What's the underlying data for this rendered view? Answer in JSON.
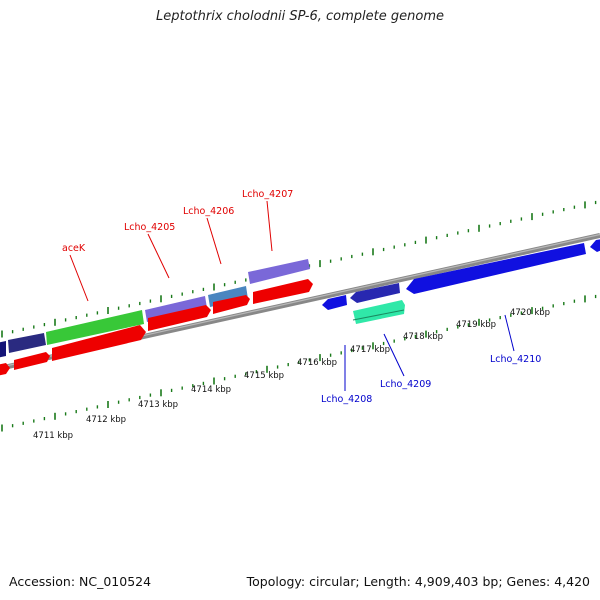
{
  "header": {
    "title": "Leptothrix cholodnii SP-6, complete genome"
  },
  "footer": {
    "accession": "Accession: NC_010524",
    "summary": "Topology: circular; Length: 4,909,403 bp; Genes: 4,420"
  },
  "colors": {
    "backbone": "#888888",
    "tick": "#1a7a1a",
    "forward_label": "#e00000",
    "reverse_label": "#0000cc",
    "cds_red": "#ee0000",
    "cds_blue": "#1010e0",
    "cds_navy": "#141478",
    "cds_purple": "#7a68d8",
    "cds_green": "#38c838",
    "cds_steel": "#4a86c0",
    "cds_navyblue": "#2828b0",
    "cds_cyan": "#30e8a8"
  },
  "kbp_labels": [
    "4711 kbp",
    "4712 kbp",
    "4713 kbp",
    "4714 kbp",
    "4715 kbp",
    "4716 kbp",
    "4717 kbp",
    "4718 kbp",
    "4719 kbp",
    "4720 kbp"
  ],
  "gene_labels": {
    "forward": [
      "aceK",
      "Lcho_4205",
      "Lcho_4206",
      "Lcho_4207"
    ],
    "reverse": [
      "Lcho_4208",
      "Lcho_4209",
      "Lcho_4210"
    ]
  }
}
